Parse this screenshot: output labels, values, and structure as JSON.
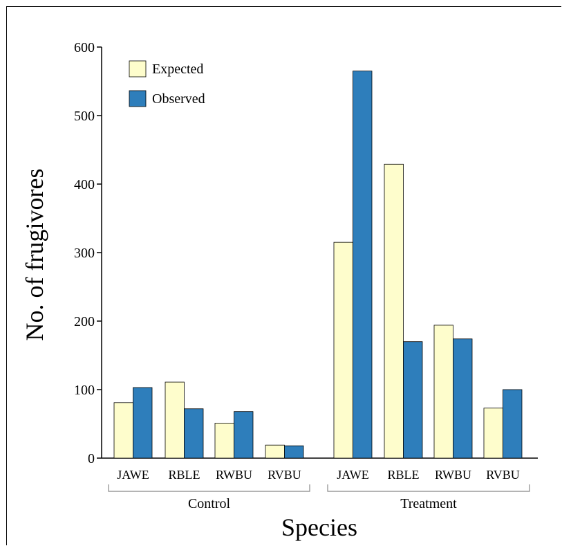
{
  "chart_data": {
    "type": "bar",
    "title": "",
    "xlabel": "Species",
    "ylabel": "No. of frugivores",
    "ylim": [
      0,
      600
    ],
    "yticks": [
      0,
      100,
      200,
      300,
      400,
      500,
      600
    ],
    "legend_position": "top-left",
    "groups": [
      {
        "label": "Control",
        "categories": [
          "JAWE",
          "RBLE",
          "RWBU",
          "RVBU"
        ]
      },
      {
        "label": "Treatment",
        "categories": [
          "JAWE",
          "RBLE",
          "RWBU",
          "RVBU"
        ]
      }
    ],
    "series": [
      {
        "name": "Expected",
        "color": "#fefdcc",
        "values": [
          81,
          111,
          51,
          19,
          315,
          429,
          194,
          73
        ]
      },
      {
        "name": "Observed",
        "color": "#2e7ebb",
        "values": [
          103,
          72,
          68,
          18,
          565,
          170,
          174,
          100
        ]
      }
    ]
  }
}
